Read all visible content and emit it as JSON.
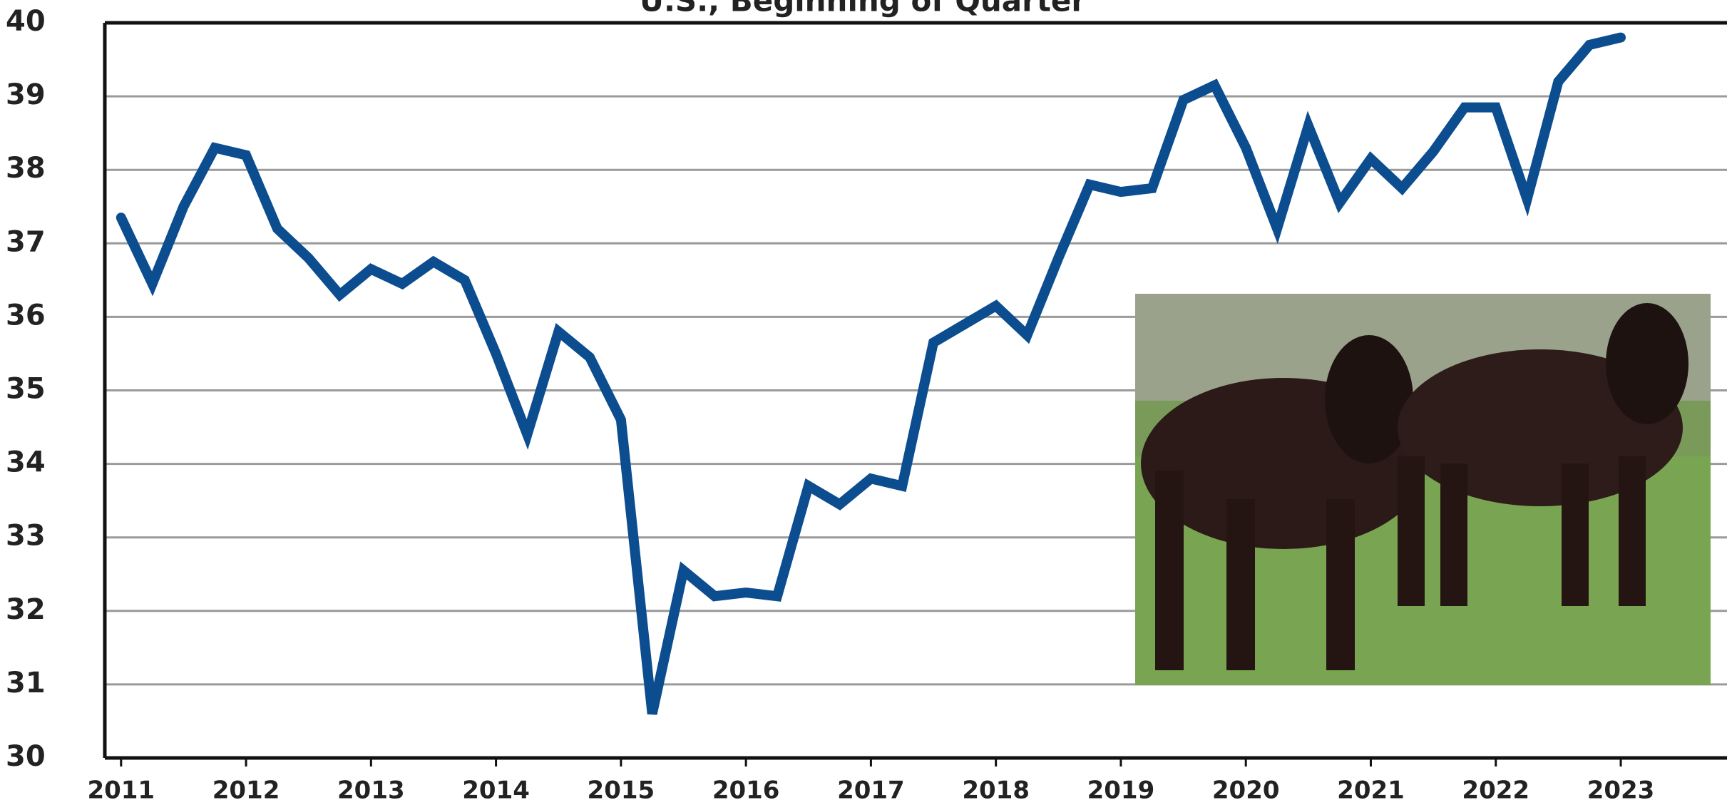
{
  "chart_data": {
    "type": "line",
    "title": "U.S., Beginning of Quarter",
    "x": [
      2011,
      2011.25,
      2011.5,
      2011.75,
      2012,
      2012.25,
      2012.5,
      2012.75,
      2013,
      2013.25,
      2013.5,
      2013.75,
      2014,
      2014.25,
      2014.5,
      2014.75,
      2015,
      2015.25,
      2015.5,
      2015.75,
      2016,
      2016.25,
      2016.5,
      2016.75,
      2017,
      2017.25,
      2017.5,
      2017.75,
      2018,
      2018.25,
      2018.5,
      2018.75,
      2019,
      2019.25,
      2019.5,
      2019.75,
      2020,
      2020.25,
      2020.5,
      2020.75,
      2021,
      2021.25,
      2021.5,
      2021.75,
      2022,
      2022.25,
      2022.5,
      2022.75,
      2023
    ],
    "series": [
      {
        "color": "#0b4d8f",
        "values": [
          37.35,
          36.45,
          37.5,
          38.3,
          38.2,
          37.2,
          36.8,
          36.3,
          36.65,
          36.45,
          36.75,
          36.5,
          35.5,
          34.4,
          35.8,
          35.45,
          34.6,
          30.6,
          32.55,
          32.2,
          32.25,
          32.2,
          33.7,
          33.45,
          33.8,
          33.7,
          35.65,
          35.9,
          36.15,
          35.75,
          36.8,
          37.8,
          37.7,
          37.75,
          38.95,
          39.15,
          38.3,
          37.2,
          38.6,
          37.55,
          38.15,
          37.75,
          38.25,
          38.85,
          38.85,
          37.6,
          39.2,
          39.7,
          39.8
        ]
      }
    ],
    "xlim": [
      2010.87,
      2023.85
    ],
    "xticks": [
      2011,
      2012,
      2013,
      2014,
      2015,
      2016,
      2017,
      2018,
      2019,
      2020,
      2021,
      2022,
      2023
    ],
    "ylim": [
      30,
      40
    ],
    "yticks": [
      30,
      31,
      32,
      33,
      34,
      35,
      36,
      37,
      38,
      39,
      40
    ],
    "grid": true
  }
}
